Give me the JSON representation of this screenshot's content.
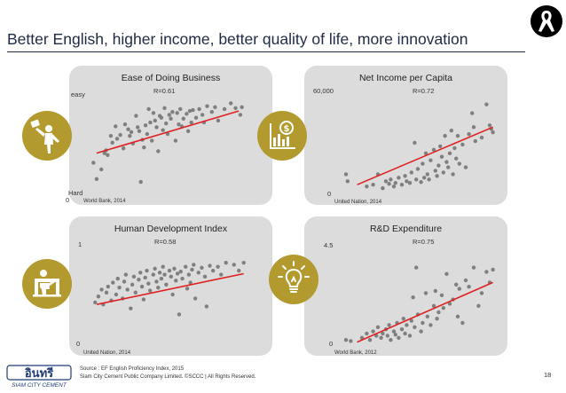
{
  "title": "Better English, higher income, better quality of life, more innovation",
  "page_number": "18",
  "footer": {
    "source": "Source : EF English Proficiency Index, 2015",
    "copyright": "Siam City Cement Public Company Limited. ©SCCC | All Rights Reserved.",
    "logo_text": "อินทรี",
    "logo_sub": "SIAM CITY CEMENT"
  },
  "colors": {
    "panel": "#dcdcdc",
    "accent": "#b39a2e",
    "point": "#7f7f7f",
    "trend": "#e02020"
  },
  "chart_data": [
    {
      "type": "scatter",
      "title": "Ease of Doing Business",
      "r_label": "R=0.61",
      "source": "World Bank, 2014",
      "y_top_label": "easy",
      "y_bottom_label": "Hard",
      "y_zero_label": "0",
      "icon": "businessman-icon",
      "xlim": [
        0,
        100
      ],
      "ylim": [
        0,
        100
      ],
      "trend": [
        [
          5,
          42
        ],
        [
          95,
          86
        ]
      ],
      "points": [
        [
          3,
          32
        ],
        [
          5,
          15
        ],
        [
          8,
          25
        ],
        [
          10,
          42
        ],
        [
          11,
          45
        ],
        [
          12,
          40
        ],
        [
          14,
          60
        ],
        [
          15,
          53
        ],
        [
          17,
          70
        ],
        [
          18,
          57
        ],
        [
          20,
          61
        ],
        [
          22,
          47
        ],
        [
          23,
          72
        ],
        [
          25,
          67
        ],
        [
          26,
          60
        ],
        [
          27,
          64
        ],
        [
          28,
          52
        ],
        [
          30,
          81
        ],
        [
          31,
          69
        ],
        [
          32,
          65
        ],
        [
          33,
          12
        ],
        [
          34,
          56
        ],
        [
          35,
          48
        ],
        [
          36,
          71
        ],
        [
          37,
          62
        ],
        [
          38,
          88
        ],
        [
          39,
          74
        ],
        [
          40,
          55
        ],
        [
          41,
          84
        ],
        [
          42,
          76
        ],
        [
          43,
          69
        ],
        [
          44,
          44
        ],
        [
          45,
          81
        ],
        [
          46,
          79
        ],
        [
          47,
          66
        ],
        [
          48,
          89
        ],
        [
          49,
          73
        ],
        [
          50,
          62
        ],
        [
          51,
          82
        ],
        [
          52,
          78
        ],
        [
          53,
          85
        ],
        [
          55,
          55
        ],
        [
          56,
          84
        ],
        [
          57,
          72
        ],
        [
          58,
          88
        ],
        [
          59,
          70
        ],
        [
          60,
          78
        ],
        [
          62,
          83
        ],
        [
          63,
          65
        ],
        [
          64,
          86
        ],
        [
          65,
          74
        ],
        [
          66,
          87
        ],
        [
          68,
          79
        ],
        [
          70,
          88
        ],
        [
          72,
          82
        ],
        [
          73,
          74
        ],
        [
          75,
          91
        ],
        [
          78,
          85
        ],
        [
          80,
          90
        ],
        [
          82,
          76
        ],
        [
          86,
          88
        ],
        [
          90,
          94
        ],
        [
          93,
          89
        ],
        [
          96,
          82
        ],
        [
          97,
          90
        ]
      ]
    },
    {
      "type": "scatter",
      "title": "Net Income per Capita",
      "r_label": "R=0.72",
      "source": "United Nation, 2014",
      "y_top_label": "60,000",
      "y_zero_label": "0",
      "icon": "money-chart-icon",
      "xlim": [
        0,
        100
      ],
      "ylim": [
        0,
        60000
      ],
      "trend": [
        [
          12,
          6000
        ],
        [
          97,
          39000
        ]
      ],
      "points": [
        [
          5,
          12000
        ],
        [
          6,
          8000
        ],
        [
          18,
          5000
        ],
        [
          22,
          6000
        ],
        [
          25,
          12000
        ],
        [
          28,
          4000
        ],
        [
          30,
          8000
        ],
        [
          32,
          6500
        ],
        [
          33,
          9000
        ],
        [
          35,
          5000
        ],
        [
          36,
          7000
        ],
        [
          38,
          10000
        ],
        [
          40,
          6000
        ],
        [
          42,
          11000
        ],
        [
          43,
          8000
        ],
        [
          45,
          7000
        ],
        [
          46,
          13000
        ],
        [
          48,
          30000
        ],
        [
          49,
          9000
        ],
        [
          50,
          15000
        ],
        [
          52,
          7500
        ],
        [
          53,
          18000
        ],
        [
          54,
          10000
        ],
        [
          55,
          24000
        ],
        [
          56,
          12000
        ],
        [
          57,
          9000
        ],
        [
          58,
          20000
        ],
        [
          60,
          26000
        ],
        [
          61,
          14000
        ],
        [
          62,
          11000
        ],
        [
          63,
          17000
        ],
        [
          64,
          28000
        ],
        [
          65,
          22000
        ],
        [
          66,
          13000
        ],
        [
          67,
          34000
        ],
        [
          68,
          19000
        ],
        [
          69,
          16000
        ],
        [
          70,
          24000
        ],
        [
          71,
          37000
        ],
        [
          72,
          12000
        ],
        [
          73,
          27000
        ],
        [
          74,
          21000
        ],
        [
          75,
          34000
        ],
        [
          76,
          18000
        ],
        [
          78,
          29000
        ],
        [
          80,
          16000
        ],
        [
          82,
          35000
        ],
        [
          84,
          47000
        ],
        [
          85,
          39000
        ],
        [
          86,
          31000
        ],
        [
          90,
          33000
        ],
        [
          93,
          52000
        ],
        [
          95,
          40000
        ],
        [
          96,
          38000
        ],
        [
          97,
          36000
        ]
      ]
    },
    {
      "type": "scatter",
      "title": "Human Development Index",
      "r_label": "R=0.58",
      "source": "United Nation, 2014",
      "y_top_label": "1",
      "y_zero_label": "0",
      "icon": "teacher-board-icon",
      "xlim": [
        0,
        100
      ],
      "ylim": [
        0,
        1
      ],
      "trend": [
        [
          5,
          0.4
        ],
        [
          96,
          0.71
        ]
      ],
      "points": [
        [
          4,
          0.42
        ],
        [
          6,
          0.48
        ],
        [
          8,
          0.55
        ],
        [
          9,
          0.4
        ],
        [
          11,
          0.52
        ],
        [
          12,
          0.58
        ],
        [
          14,
          0.44
        ],
        [
          15,
          0.62
        ],
        [
          17,
          0.5
        ],
        [
          18,
          0.66
        ],
        [
          19,
          0.57
        ],
        [
          21,
          0.46
        ],
        [
          22,
          0.63
        ],
        [
          23,
          0.7
        ],
        [
          24,
          0.55
        ],
        [
          26,
          0.36
        ],
        [
          27,
          0.6
        ],
        [
          28,
          0.68
        ],
        [
          29,
          0.52
        ],
        [
          31,
          0.65
        ],
        [
          32,
          0.72
        ],
        [
          33,
          0.58
        ],
        [
          34,
          0.45
        ],
        [
          35,
          0.67
        ],
        [
          36,
          0.74
        ],
        [
          37,
          0.61
        ],
        [
          38,
          0.54
        ],
        [
          40,
          0.7
        ],
        [
          41,
          0.76
        ],
        [
          42,
          0.63
        ],
        [
          43,
          0.57
        ],
        [
          44,
          0.72
        ],
        [
          45,
          0.66
        ],
        [
          46,
          0.78
        ],
        [
          47,
          0.7
        ],
        [
          48,
          0.6
        ],
        [
          50,
          0.74
        ],
        [
          51,
          0.68
        ],
        [
          52,
          0.5
        ],
        [
          53,
          0.76
        ],
        [
          54,
          0.64
        ],
        [
          55,
          0.71
        ],
        [
          56,
          0.3
        ],
        [
          57,
          0.73
        ],
        [
          58,
          0.66
        ],
        [
          60,
          0.78
        ],
        [
          61,
          0.56
        ],
        [
          62,
          0.7
        ],
        [
          63,
          0.62
        ],
        [
          64,
          0.75
        ],
        [
          65,
          0.8
        ],
        [
          66,
          0.46
        ],
        [
          68,
          0.72
        ],
        [
          70,
          0.77
        ],
        [
          72,
          0.68
        ],
        [
          73,
          0.38
        ],
        [
          75,
          0.79
        ],
        [
          77,
          0.74
        ],
        [
          80,
          0.78
        ],
        [
          82,
          0.7
        ],
        [
          85,
          0.82
        ],
        [
          90,
          0.8
        ],
        [
          93,
          0.74
        ],
        [
          96,
          0.82
        ]
      ]
    },
    {
      "type": "scatter",
      "title": "R&D Expenditure",
      "r_label": "R=0.75",
      "source": "World Bank, 2012",
      "y_top_label": "4.5",
      "y_zero_label": "0",
      "icon": "lightbulb-icon",
      "xlim": [
        0,
        100
      ],
      "ylim": [
        0,
        4.5
      ],
      "trend": [
        [
          12,
          0.1
        ],
        [
          97,
          2.9
        ]
      ],
      "points": [
        [
          5,
          0.2
        ],
        [
          8,
          0.15
        ],
        [
          15,
          0.3
        ],
        [
          18,
          0.5
        ],
        [
          20,
          0.2
        ],
        [
          22,
          0.6
        ],
        [
          24,
          0.4
        ],
        [
          25,
          0.8
        ],
        [
          27,
          0.3
        ],
        [
          28,
          0.5
        ],
        [
          30,
          0.7
        ],
        [
          31,
          0.4
        ],
        [
          32,
          0.9
        ],
        [
          33,
          0.2
        ],
        [
          35,
          0.6
        ],
        [
          36,
          0.45
        ],
        [
          37,
          1.0
        ],
        [
          38,
          0.3
        ],
        [
          40,
          0.7
        ],
        [
          41,
          1.2
        ],
        [
          42,
          0.5
        ],
        [
          43,
          0.9
        ],
        [
          45,
          0.4
        ],
        [
          46,
          1.1
        ],
        [
          47,
          2.2
        ],
        [
          48,
          0.8
        ],
        [
          49,
          3.6
        ],
        [
          50,
          1.4
        ],
        [
          52,
          0.6
        ],
        [
          53,
          1.0
        ],
        [
          55,
          2.4
        ],
        [
          56,
          1.3
        ],
        [
          58,
          0.9
        ],
        [
          60,
          1.8
        ],
        [
          61,
          2.5
        ],
        [
          62,
          1.2
        ],
        [
          63,
          1.5
        ],
        [
          65,
          2.3
        ],
        [
          66,
          1.7
        ],
        [
          68,
          3.3
        ],
        [
          70,
          1.9
        ],
        [
          72,
          2.1
        ],
        [
          74,
          2.8
        ],
        [
          75,
          1.3
        ],
        [
          76,
          2.6
        ],
        [
          78,
          1.0
        ],
        [
          80,
          3.0
        ],
        [
          82,
          2.7
        ],
        [
          85,
          3.6
        ],
        [
          88,
          1.8
        ],
        [
          90,
          2.4
        ],
        [
          93,
          3.4
        ],
        [
          95,
          2.9
        ],
        [
          97,
          3.5
        ]
      ]
    }
  ]
}
